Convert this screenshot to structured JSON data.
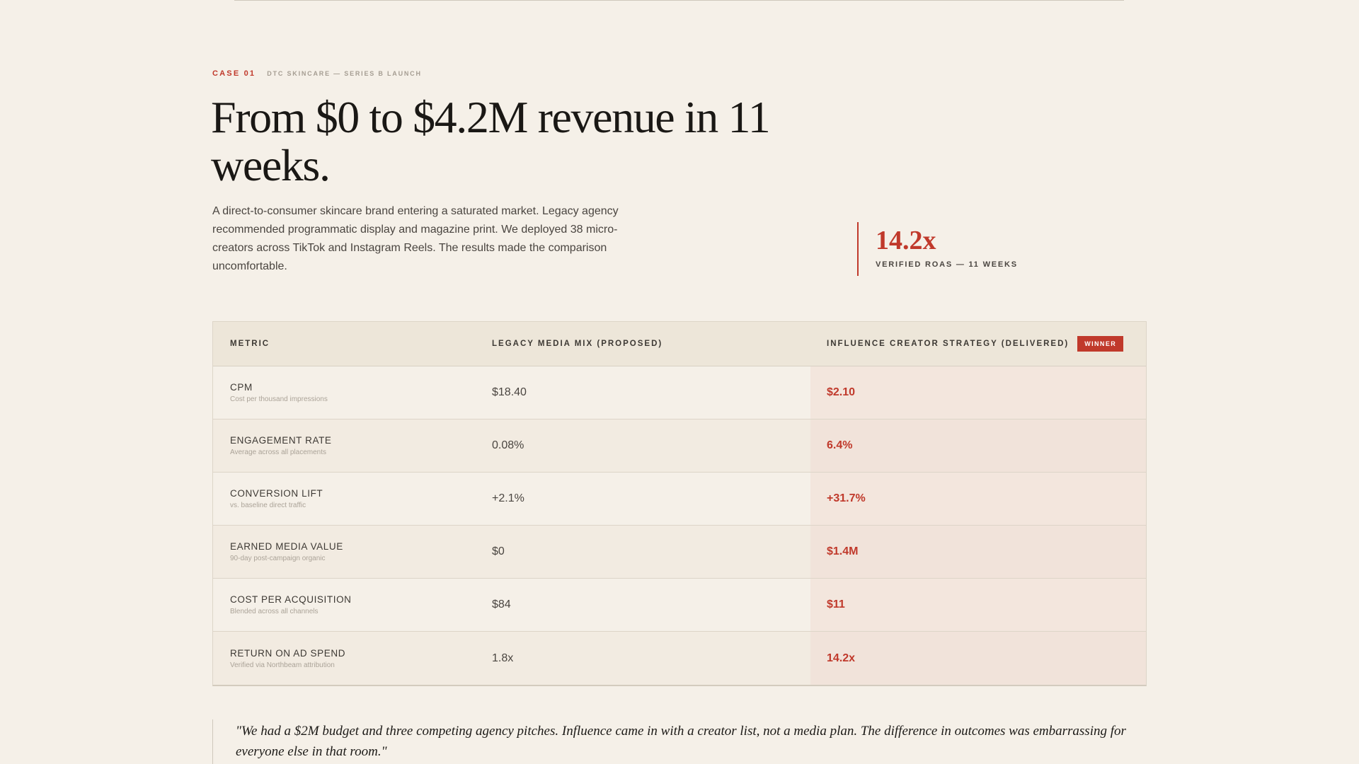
{
  "case": {
    "tag": "CASE 01",
    "subtitle": "DTC SKINCARE — SERIES B LAUNCH"
  },
  "headline": "From $0 to $4.2M revenue in 11 weeks.",
  "lede": "A direct-to-consumer skincare brand entering a saturated market. Legacy agency recommended programmatic display and magazine print. We deployed 38 micro-creators across TikTok and Instagram Reels. The results made the comparison uncomfortable.",
  "stat": {
    "value": "14.2x",
    "label": "VERIFIED ROAS — 11 WEEKS"
  },
  "table": {
    "headers": {
      "metric": "METRIC",
      "legacy": "LEGACY MEDIA MIX (PROPOSED)",
      "influence": "INFLUENCE CREATOR STRATEGY (DELIVERED)",
      "badge": "WINNER"
    },
    "rows": [
      {
        "name": "CPM",
        "desc": "Cost per thousand impressions",
        "legacy": "$18.40",
        "influence": "$2.10"
      },
      {
        "name": "ENGAGEMENT RATE",
        "desc": "Average across all placements",
        "legacy": "0.08%",
        "influence": "6.4%"
      },
      {
        "name": "CONVERSION LIFT",
        "desc": "vs. baseline direct traffic",
        "legacy": "+2.1%",
        "influence": "+31.7%"
      },
      {
        "name": "EARNED MEDIA VALUE",
        "desc": "90-day post-campaign organic",
        "legacy": "$0",
        "influence": "$1.4M"
      },
      {
        "name": "COST PER ACQUISITION",
        "desc": "Blended across all channels",
        "legacy": "$84",
        "influence": "$11"
      },
      {
        "name": "RETURN ON AD SPEND",
        "desc": "Verified via Northbeam attribution",
        "legacy": "1.8x",
        "influence": "14.2x"
      }
    ]
  },
  "quote": "\"We had a $2M budget and three competing agency pitches. Influence came in with a creator list, not a media plan. The difference in outcomes was embarrassing for everyone else in that room.\"",
  "colors": {
    "background": "#f5f0e8",
    "accent": "#c0392b",
    "text": "#1c1a17"
  }
}
